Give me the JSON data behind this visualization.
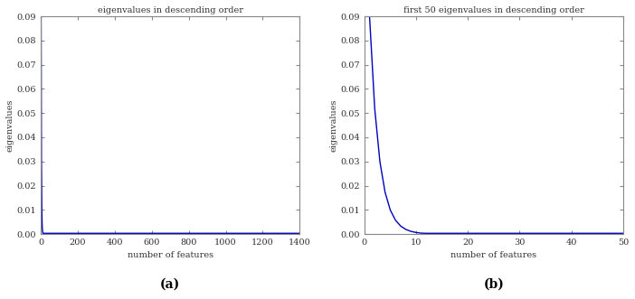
{
  "title_a": "eigenvalues in descending order",
  "title_b": "first 50 eigenvalues in descending order",
  "xlabel": "number of features",
  "ylabel": "eigenvalues",
  "label_a": "(a)",
  "label_b": "(b)",
  "n_total": 1404,
  "n_first": 50,
  "ylim": [
    0,
    0.09
  ],
  "yticks": [
    0,
    0.01,
    0.02,
    0.03,
    0.04,
    0.05,
    0.06,
    0.07,
    0.08,
    0.09
  ],
  "xlim_a": [
    0,
    1400
  ],
  "xticks_a": [
    0,
    200,
    400,
    600,
    800,
    1000,
    1200,
    1400
  ],
  "xlim_b": [
    0,
    50
  ],
  "xticks_b": [
    0,
    10,
    20,
    30,
    40,
    50
  ],
  "line_color": "#0000bb",
  "line_width": 1.0,
  "max_eigenvalue": 0.09,
  "decay_rate": 0.55,
  "background_color": "#ffffff",
  "title_fontsize": 7,
  "label_fontsize": 7,
  "tick_fontsize": 7,
  "bold_label_fontsize": 10,
  "axes_edge_color": "#888888"
}
